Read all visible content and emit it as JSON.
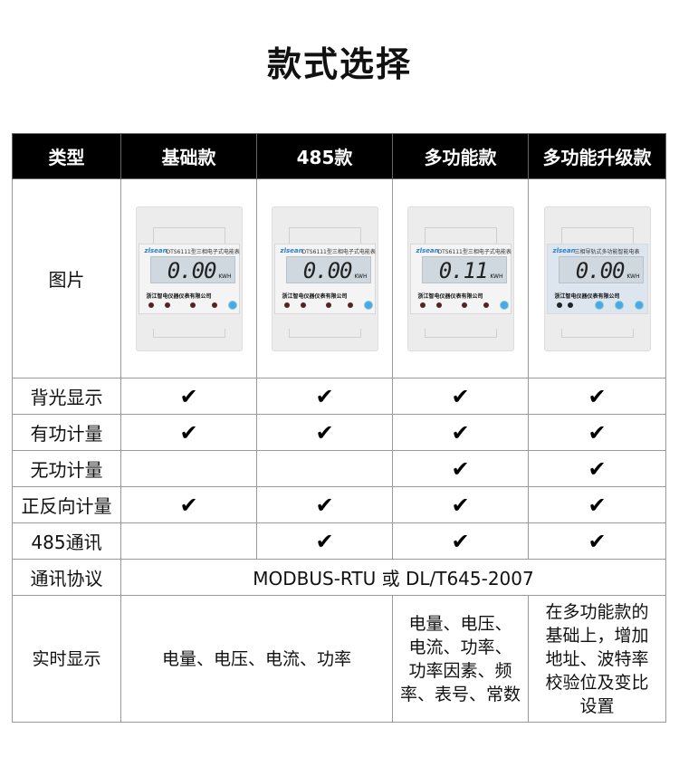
{
  "title": "款式选择",
  "headers": [
    "类型",
    "基础款",
    "485款",
    "多功能款",
    "多功能升级款"
  ],
  "image_row_label": "图片",
  "meters": [
    {
      "brand": "zlsean",
      "model": "DTS6111型三相电子式电能表",
      "reading": "0.00",
      "unit": "KWH",
      "maker": "浙江智电仪器仪表有限公司"
    },
    {
      "brand": "zlsean",
      "model": "DTS6111型三相电子式电能表",
      "reading": "0.00",
      "unit": "KWH",
      "maker": "浙江智电仪器仪表有限公司"
    },
    {
      "brand": "zlsean",
      "model": "DTS6111型三相电子式电能表",
      "reading": "0.11",
      "unit": "KWH",
      "maker": "浙江智电仪器仪表有限公司"
    },
    {
      "brand": "zlsean",
      "model": "三相导轨式多功能智能电表",
      "reading": "0.00",
      "unit": "KWH",
      "maker": "浙江智电仪器仪表有限公司"
    }
  ],
  "check": "✔",
  "features": [
    {
      "label": "背光显示",
      "cols": [
        true,
        true,
        true,
        true
      ]
    },
    {
      "label": "有功计量",
      "cols": [
        true,
        true,
        true,
        true
      ]
    },
    {
      "label": "无功计量",
      "cols": [
        false,
        false,
        true,
        true
      ]
    },
    {
      "label": "正反向计量",
      "cols": [
        true,
        true,
        true,
        true
      ]
    },
    {
      "label": "485通讯",
      "cols": [
        false,
        true,
        true,
        true
      ]
    }
  ],
  "protocol": {
    "label": "通讯协议",
    "value": "MODBUS-RTU 或 DL/T645-2007"
  },
  "realtime": {
    "label": "实时显示",
    "basic": "电量、电压、电流、功率",
    "multi": [
      "电量、电压、",
      "电流、功率、",
      "功率因素、频",
      "率、表号、常数"
    ],
    "upgrade": [
      "在多功能款的",
      "基础上，增加",
      "地址、波特率",
      "校验位及变比",
      "设置"
    ]
  }
}
